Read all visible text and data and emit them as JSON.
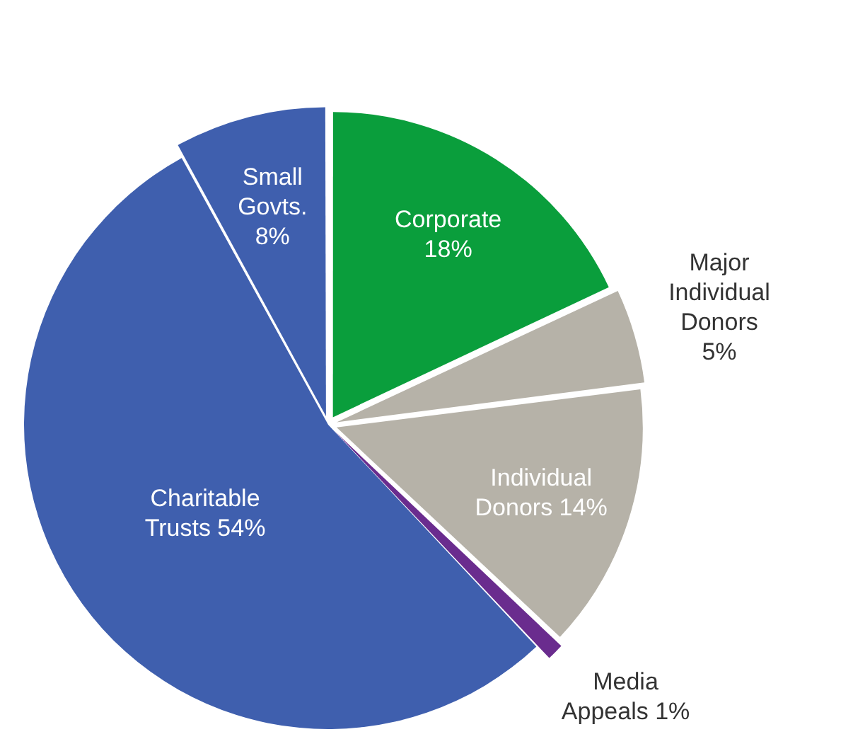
{
  "chart_data": {
    "type": "pie",
    "categories": [
      "Corporate",
      "Major Individual Donors",
      "Individual Donors",
      "Media Appeals",
      "Charitable Trusts",
      "Small Govts."
    ],
    "values": [
      18,
      5,
      14,
      1,
      54,
      8
    ],
    "value_labels": [
      "18%",
      "5%",
      "14%",
      "1%",
      "54%",
      "8%"
    ],
    "colors": [
      "#0a9e3c",
      "#b6b2a8",
      "#b6b2a8",
      "#6a2c8e",
      "#3f5fae",
      "#3f5fae"
    ],
    "legend": false
  }
}
